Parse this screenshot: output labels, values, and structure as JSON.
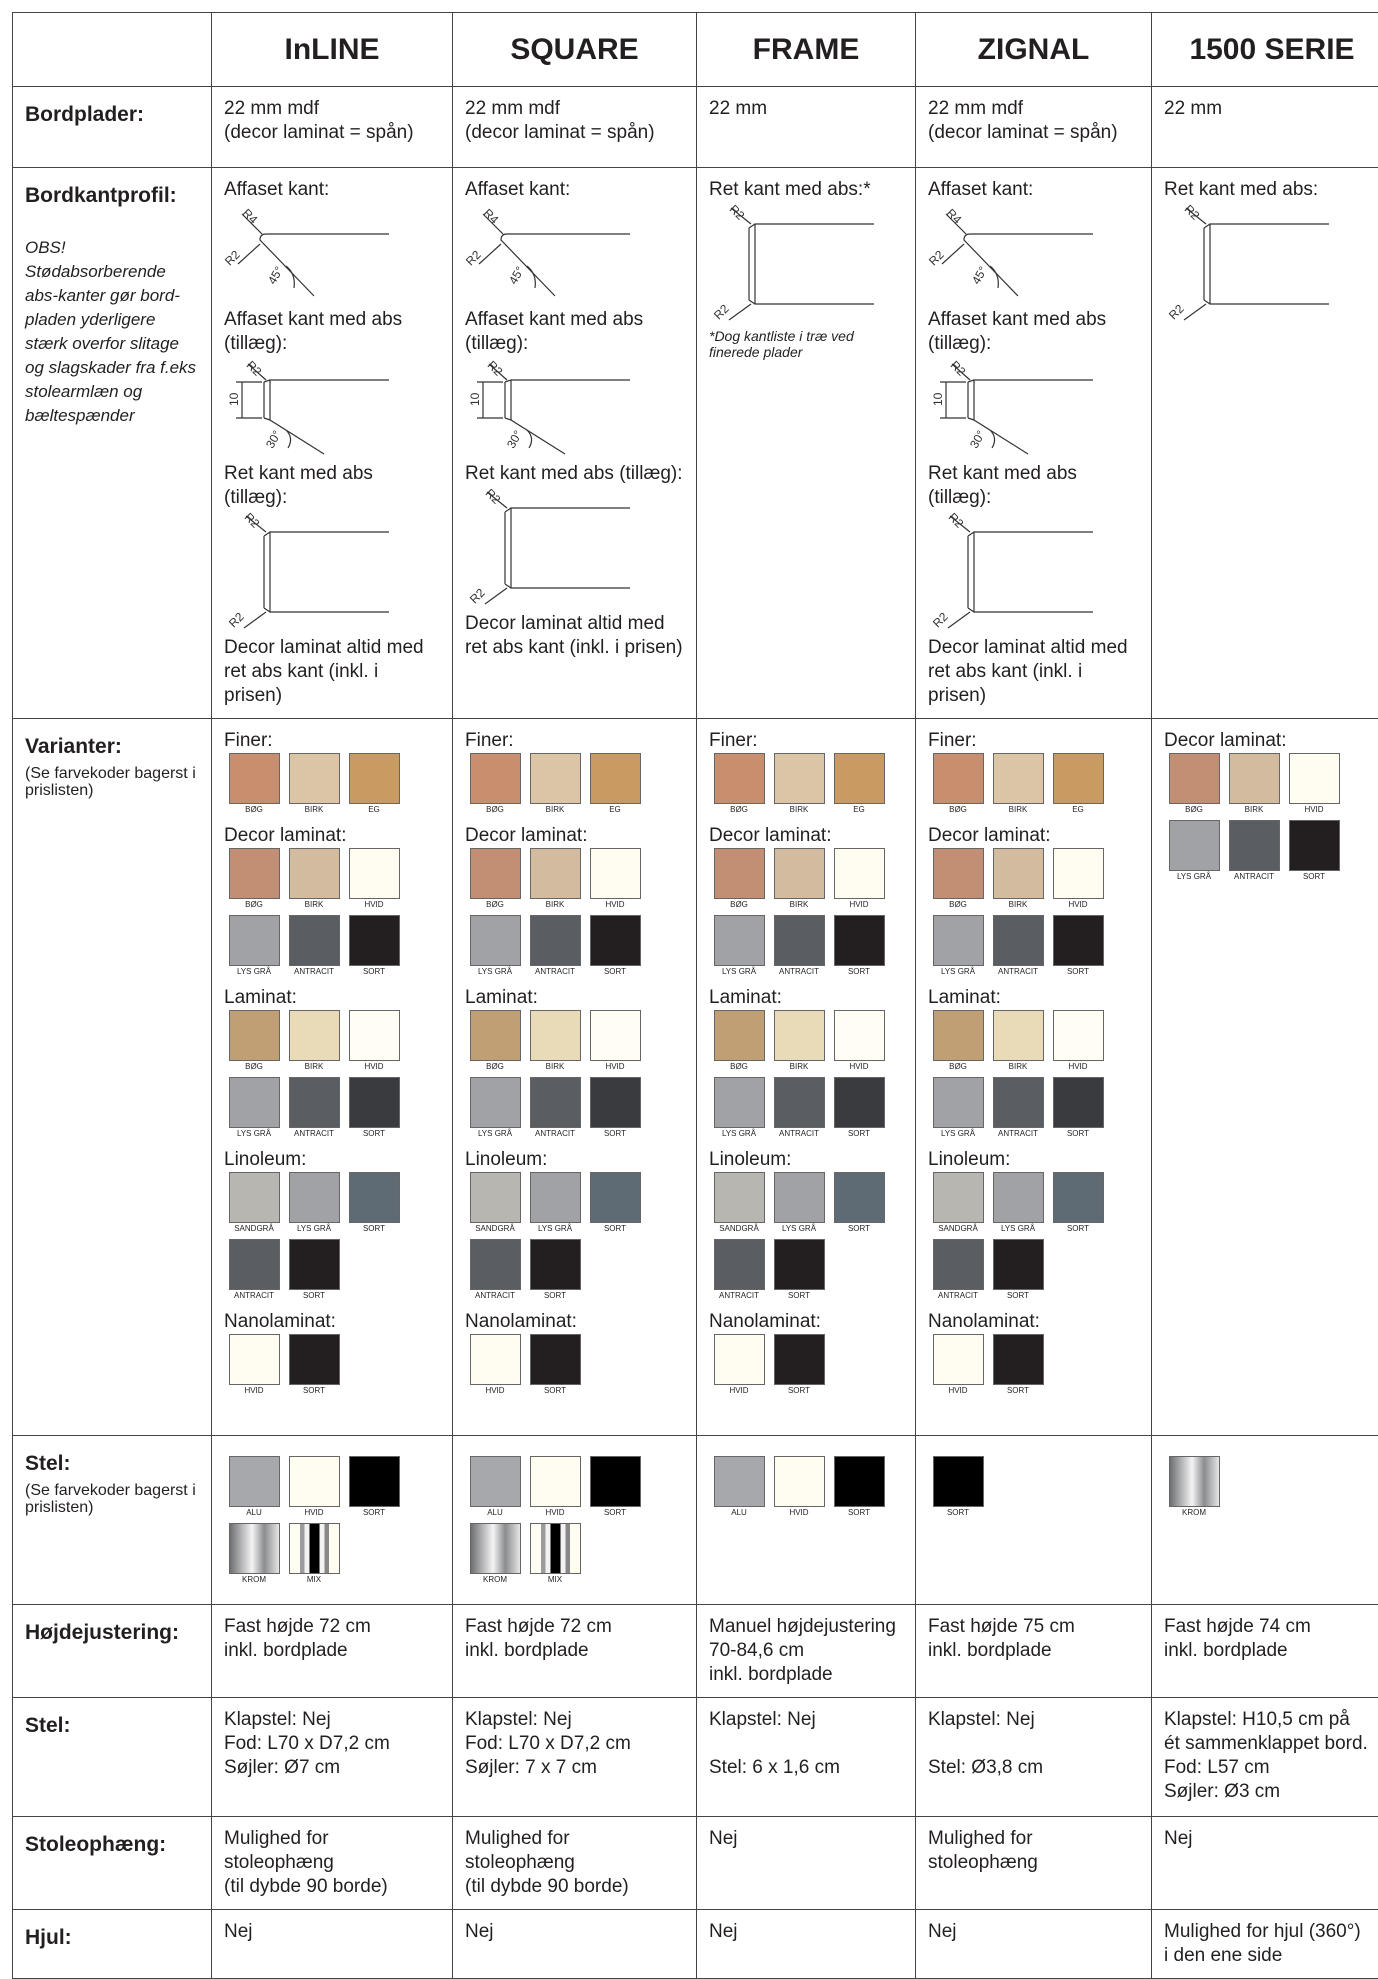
{
  "columns": [
    "InLINE",
    "SQUARE",
    "FRAME",
    "ZIGNAL",
    "1500 SERIE"
  ],
  "profile_labels": {
    "chamfer": [
      "R4",
      "R2",
      "45°"
    ],
    "abs": [
      "R2",
      "10",
      "30°"
    ],
    "straight": [
      "R2",
      "R2"
    ]
  },
  "rows": [
    {
      "label": "Bordplader:",
      "kind": "text",
      "cells": [
        [
          [
            "22 mm mdf",
            "(decor laminat = spån)"
          ]
        ],
        [
          [
            "22 mm mdf",
            "(decor laminat = spån)"
          ]
        ],
        [
          [
            "22 mm"
          ]
        ],
        [
          [
            "22 mm mdf",
            "(decor laminat = spån)"
          ]
        ],
        [
          [
            "22 mm"
          ]
        ]
      ]
    },
    {
      "label": "Bordkantprofil:",
      "note": "OBS! Stødabsorberende abs-kanter gør bord-pladen yderligere stærk overfor slitage og slagskader fra f.eks stolearmlæn og bæltespænder",
      "kind": "profile",
      "cells": [
        [
          {
            "caption": "Affaset kant:",
            "profile": "chamfer"
          },
          {
            "caption": "Affaset kant med abs (tillæg):",
            "profile": "abs"
          },
          {
            "caption": "Ret kant med abs (tillæg):",
            "profile": "straight"
          },
          {
            "caption": "Decor laminat altid med ret abs kant (inkl. i prisen)"
          }
        ],
        [
          {
            "caption": "Affaset kant:",
            "profile": "chamfer"
          },
          {
            "caption": "Affaset kant med abs (tillæg):",
            "profile": "abs"
          },
          {
            "caption": "Ret kant med abs (tillæg):",
            "profile": "straight"
          },
          {
            "caption": "Decor laminat altid med ret abs kant (inkl. i prisen)"
          }
        ],
        [
          {
            "caption": "Ret kant med abs:*",
            "profile": "straight"
          },
          {
            "footnote": "*Dog kantliste i træ ved finerede plader"
          }
        ],
        [
          {
            "caption": "Affaset kant:",
            "profile": "chamfer"
          },
          {
            "caption": "Affaset kant med abs (tillæg):",
            "profile": "abs"
          },
          {
            "caption": "Ret kant med abs (tillæg):",
            "profile": "straight"
          },
          {
            "caption": "Decor laminat altid med ret abs kant (inkl. i prisen)"
          }
        ],
        [
          {
            "caption": "Ret kant med abs:",
            "profile": "straight"
          }
        ]
      ]
    },
    {
      "label": "Varianter:",
      "note": "(Se farvekoder bagerst i prislisten)",
      "kind": "swatches",
      "cells": [
        [
          {
            "title": "Finer:",
            "swatches": [
              {
                "label": "BØG",
                "color": "#c78f6d"
              },
              {
                "label": "BIRK",
                "color": "#dcc5a6"
              },
              {
                "label": "EG",
                "color": "#c99b63"
              }
            ]
          },
          {
            "title": "Decor laminat:",
            "swatches": [
              {
                "label": "BØG",
                "color": "#c28f74"
              },
              {
                "label": "BIRK",
                "color": "#d3bb9f"
              },
              {
                "label": "HVID",
                "color": "#fffdf2"
              },
              {
                "label": "LYS GRÅ",
                "color": "#a0a2a6"
              },
              {
                "label": "ANTRACIT",
                "color": "#5a5e62"
              },
              {
                "label": "SORT",
                "color": "#231f20"
              }
            ]
          },
          {
            "title": "Laminat:",
            "swatches": [
              {
                "label": "BØG",
                "color": "#bf9f73"
              },
              {
                "label": "BIRK",
                "color": "#e9dbb7"
              },
              {
                "label": "HVID",
                "color": "#fffdf4"
              },
              {
                "label": "LYS GRÅ",
                "color": "#a0a2a6"
              },
              {
                "label": "ANTRACIT",
                "color": "#5a5e62"
              },
              {
                "label": "SORT",
                "color": "#3a3b3f"
              }
            ]
          },
          {
            "title": "Linoleum:",
            "swatches": [
              {
                "label": "SANDGRÅ",
                "color": "#b8b6b0"
              },
              {
                "label": "LYS GRÅ",
                "color": "#a0a2a6"
              },
              {
                "label": "SORT",
                "color": "#5e6a74"
              },
              {
                "label": "ANTRACIT",
                "color": "#5a5e62"
              },
              {
                "label": "SORT",
                "color": "#231f20"
              }
            ]
          },
          {
            "title": "Nanolaminat:",
            "swatches": [
              {
                "label": "HVID",
                "color": "#fffdf2"
              },
              {
                "label": "SORT",
                "color": "#231f20"
              }
            ]
          }
        ],
        [
          {
            "title": "Finer:",
            "swatches": [
              {
                "label": "BØG",
                "color": "#c78f6d"
              },
              {
                "label": "BIRK",
                "color": "#dcc5a6"
              },
              {
                "label": "EG",
                "color": "#c99b63"
              }
            ]
          },
          {
            "title": "Decor laminat:",
            "swatches": [
              {
                "label": "BØG",
                "color": "#c28f74"
              },
              {
                "label": "BIRK",
                "color": "#d3bb9f"
              },
              {
                "label": "HVID",
                "color": "#fffdf2"
              },
              {
                "label": "LYS GRÅ",
                "color": "#a0a2a6"
              },
              {
                "label": "ANTRACIT",
                "color": "#5a5e62"
              },
              {
                "label": "SORT",
                "color": "#231f20"
              }
            ]
          },
          {
            "title": "Laminat:",
            "swatches": [
              {
                "label": "BØG",
                "color": "#bf9f73"
              },
              {
                "label": "BIRK",
                "color": "#e9dbb7"
              },
              {
                "label": "HVID",
                "color": "#fffdf4"
              },
              {
                "label": "LYS GRÅ",
                "color": "#a0a2a6"
              },
              {
                "label": "ANTRACIT",
                "color": "#5a5e62"
              },
              {
                "label": "SORT",
                "color": "#3a3b3f"
              }
            ]
          },
          {
            "title": "Linoleum:",
            "swatches": [
              {
                "label": "SANDGRÅ",
                "color": "#b8b6b0"
              },
              {
                "label": "LYS GRÅ",
                "color": "#a0a2a6"
              },
              {
                "label": "SORT",
                "color": "#5e6a74"
              },
              {
                "label": "ANTRACIT",
                "color": "#5a5e62"
              },
              {
                "label": "SORT",
                "color": "#231f20"
              }
            ]
          },
          {
            "title": "Nanolaminat:",
            "swatches": [
              {
                "label": "HVID",
                "color": "#fffdf2"
              },
              {
                "label": "SORT",
                "color": "#231f20"
              }
            ]
          }
        ],
        [
          {
            "title": "Finer:",
            "swatches": [
              {
                "label": "BØG",
                "color": "#c78f6d"
              },
              {
                "label": "BIRK",
                "color": "#dcc5a6"
              },
              {
                "label": "EG",
                "color": "#c99b63"
              }
            ]
          },
          {
            "title": "Decor laminat:",
            "swatches": [
              {
                "label": "BØG",
                "color": "#c28f74"
              },
              {
                "label": "BIRK",
                "color": "#d3bb9f"
              },
              {
                "label": "HVID",
                "color": "#fffdf2"
              },
              {
                "label": "LYS GRÅ",
                "color": "#a0a2a6"
              },
              {
                "label": "ANTRACIT",
                "color": "#5a5e62"
              },
              {
                "label": "SORT",
                "color": "#231f20"
              }
            ]
          },
          {
            "title": "Laminat:",
            "swatches": [
              {
                "label": "BØG",
                "color": "#bf9f73"
              },
              {
                "label": "BIRK",
                "color": "#e9dbb7"
              },
              {
                "label": "HVID",
                "color": "#fffdf4"
              },
              {
                "label": "LYS GRÅ",
                "color": "#a0a2a6"
              },
              {
                "label": "ANTRACIT",
                "color": "#5a5e62"
              },
              {
                "label": "SORT",
                "color": "#3a3b3f"
              }
            ]
          },
          {
            "title": "Linoleum:",
            "swatches": [
              {
                "label": "SANDGRÅ",
                "color": "#b8b6b0"
              },
              {
                "label": "LYS GRÅ",
                "color": "#a0a2a6"
              },
              {
                "label": "SORT",
                "color": "#5e6a74"
              },
              {
                "label": "ANTRACIT",
                "color": "#5a5e62"
              },
              {
                "label": "SORT",
                "color": "#231f20"
              }
            ]
          },
          {
            "title": "Nanolaminat:",
            "swatches": [
              {
                "label": "HVID",
                "color": "#fffdf2"
              },
              {
                "label": "SORT",
                "color": "#231f20"
              }
            ]
          }
        ],
        [
          {
            "title": "Finer:",
            "swatches": [
              {
                "label": "BØG",
                "color": "#c78f6d"
              },
              {
                "label": "BIRK",
                "color": "#dcc5a6"
              },
              {
                "label": "EG",
                "color": "#c99b63"
              }
            ]
          },
          {
            "title": "Decor laminat:",
            "swatches": [
              {
                "label": "BØG",
                "color": "#c28f74"
              },
              {
                "label": "BIRK",
                "color": "#d3bb9f"
              },
              {
                "label": "HVID",
                "color": "#fffdf2"
              },
              {
                "label": "LYS GRÅ",
                "color": "#a0a2a6"
              },
              {
                "label": "ANTRACIT",
                "color": "#5a5e62"
              },
              {
                "label": "SORT",
                "color": "#231f20"
              }
            ]
          },
          {
            "title": "Laminat:",
            "swatches": [
              {
                "label": "BØG",
                "color": "#bf9f73"
              },
              {
                "label": "BIRK",
                "color": "#e9dbb7"
              },
              {
                "label": "HVID",
                "color": "#fffdf4"
              },
              {
                "label": "LYS GRÅ",
                "color": "#a0a2a6"
              },
              {
                "label": "ANTRACIT",
                "color": "#5a5e62"
              },
              {
                "label": "SORT",
                "color": "#3a3b3f"
              }
            ]
          },
          {
            "title": "Linoleum:",
            "swatches": [
              {
                "label": "SANDGRÅ",
                "color": "#b8b6b0"
              },
              {
                "label": "LYS GRÅ",
                "color": "#a0a2a6"
              },
              {
                "label": "SORT",
                "color": "#5e6a74"
              },
              {
                "label": "ANTRACIT",
                "color": "#5a5e62"
              },
              {
                "label": "SORT",
                "color": "#231f20"
              }
            ]
          },
          {
            "title": "Nanolaminat:",
            "swatches": [
              {
                "label": "HVID",
                "color": "#fffdf2"
              },
              {
                "label": "SORT",
                "color": "#231f20"
              }
            ]
          }
        ],
        [
          {
            "title": "Decor laminat:",
            "swatches": [
              {
                "label": "BØG",
                "color": "#c28f74"
              },
              {
                "label": "BIRK",
                "color": "#d3bb9f"
              },
              {
                "label": "HVID",
                "color": "#fffdf2"
              },
              {
                "label": "LYS GRÅ",
                "color": "#a0a2a6"
              },
              {
                "label": "ANTRACIT",
                "color": "#5a5e62"
              },
              {
                "label": "SORT",
                "color": "#231f20"
              }
            ]
          }
        ]
      ]
    },
    {
      "label": "Stel:",
      "note": "(Se farvekoder bagerst i prislisten)",
      "kind": "swatches",
      "cells": [
        [
          {
            "swatches": [
              {
                "label": "ALU",
                "color": "#a6a8ab"
              },
              {
                "label": "HVID",
                "color": "#fffdf2"
              },
              {
                "label": "SORT",
                "color": "#000000"
              },
              {
                "label": "KROM",
                "color": "chrome"
              },
              {
                "label": "MIX",
                "color": "mix"
              }
            ]
          }
        ],
        [
          {
            "swatches": [
              {
                "label": "ALU",
                "color": "#a6a8ab"
              },
              {
                "label": "HVID",
                "color": "#fffdf2"
              },
              {
                "label": "SORT",
                "color": "#000000"
              },
              {
                "label": "KROM",
                "color": "chrome"
              },
              {
                "label": "MIX",
                "color": "mix"
              }
            ]
          }
        ],
        [
          {
            "swatches": [
              {
                "label": "ALU",
                "color": "#a6a8ab"
              },
              {
                "label": "HVID",
                "color": "#fffdf2"
              },
              {
                "label": "SORT",
                "color": "#000000"
              }
            ]
          }
        ],
        [
          {
            "swatches": [
              {
                "label": "SORT",
                "color": "#000000"
              }
            ]
          }
        ],
        [
          {
            "swatches": [
              {
                "label": "KROM",
                "color": "chrome"
              }
            ]
          }
        ]
      ]
    },
    {
      "label": "Højdejustering:",
      "kind": "text",
      "cells": [
        [
          [
            "Fast højde 72 cm",
            "inkl. bordplade"
          ]
        ],
        [
          [
            "Fast højde 72 cm",
            "inkl. bordplade"
          ]
        ],
        [
          [
            "Manuel højdejustering",
            "70-84,6 cm",
            "inkl. bordplade"
          ]
        ],
        [
          [
            "Fast højde 75 cm",
            "inkl. bordplade"
          ]
        ],
        [
          [
            "Fast højde 74 cm",
            "inkl. bordplade"
          ]
        ]
      ]
    },
    {
      "label": "Stel:",
      "kind": "text",
      "cells": [
        [
          [
            "Klapstel: Nej",
            "Fod: L70 x D7,2 cm",
            "Søjler: Ø7 cm"
          ]
        ],
        [
          [
            "Klapstel: Nej",
            "Fod: L70 x D7,2 cm",
            "Søjler: 7 x 7 cm"
          ]
        ],
        [
          [
            "Klapstel: Nej"
          ],
          [
            "Stel: 6 x 1,6 cm"
          ]
        ],
        [
          [
            "Klapstel: Nej"
          ],
          [
            "Stel: Ø3,8 cm"
          ]
        ],
        [
          [
            "Klapstel: H10,5 cm på",
            "ét sammenklappet bord.",
            "Fod: L57 cm",
            "Søjler: Ø3 cm"
          ]
        ]
      ]
    },
    {
      "label": "Stoleophæng:",
      "kind": "text",
      "cells": [
        [
          [
            "Mulighed for stoleophæng",
            "(til dybde 90 borde)"
          ]
        ],
        [
          [
            "Mulighed for stoleophæng",
            "(til dybde 90 borde)"
          ]
        ],
        [
          [
            "Nej"
          ]
        ],
        [
          [
            "Mulighed for",
            "stoleophæng"
          ]
        ],
        [
          [
            "Nej"
          ]
        ]
      ]
    },
    {
      "label": "Hjul:",
      "kind": "text",
      "cells": [
        [
          [
            "Nej"
          ]
        ],
        [
          [
            "Nej"
          ]
        ],
        [
          [
            "Nej"
          ]
        ],
        [
          [
            "Nej"
          ]
        ],
        [
          [
            "Mulighed for hjul (360°)",
            "i den ene side"
          ]
        ]
      ]
    }
  ]
}
